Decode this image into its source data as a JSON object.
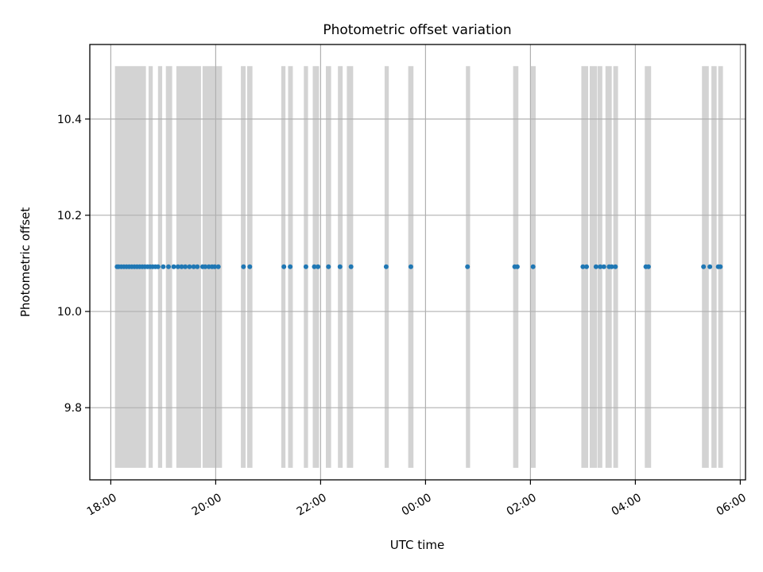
{
  "chart_data": {
    "type": "scatter",
    "title": "Photometric offset variation",
    "xlabel": "UTC time",
    "ylabel": "Photometric offset",
    "x_ticks": [
      "18:00",
      "20:00",
      "22:00",
      "00:00",
      "02:00",
      "04:00",
      "06:00"
    ],
    "y_ticks": [
      "9.8",
      "10.0",
      "10.2",
      "10.4"
    ],
    "xlim_hours": [
      17.6,
      30.1
    ],
    "ylim": [
      9.65,
      10.555
    ],
    "grid": true,
    "shaded_band_y": [
      9.675,
      10.51
    ],
    "colors": {
      "point": "#1f77b4",
      "band": "#d3d3d3",
      "grid": "#b0b0b0"
    },
    "series": [
      {
        "values_y": 10.093,
        "x_hours": [
          18.12,
          18.15,
          18.2,
          18.25,
          18.3,
          18.35,
          18.4,
          18.45,
          18.5,
          18.55,
          18.6,
          18.65,
          18.7,
          18.75,
          18.8,
          18.85,
          18.9,
          19.0,
          19.1,
          19.2,
          19.28,
          19.35,
          19.42,
          19.5,
          19.58,
          19.65,
          19.75,
          19.8,
          19.87,
          19.93,
          19.98,
          20.05,
          20.53,
          20.65,
          21.3,
          21.42,
          21.72,
          21.88,
          21.95,
          22.15,
          22.37,
          22.58,
          23.25,
          23.72,
          24.8,
          25.7,
          25.75,
          26.05,
          27.0,
          27.07,
          27.25,
          27.33,
          27.4,
          27.5,
          27.55,
          27.62,
          28.2,
          28.25,
          29.3,
          29.42,
          29.58,
          29.62
        ]
      }
    ],
    "bands_hours": [
      [
        18.08,
        18.67
      ],
      [
        18.72,
        18.8
      ],
      [
        18.9,
        18.98
      ],
      [
        19.05,
        19.17
      ],
      [
        19.25,
        19.72
      ],
      [
        19.75,
        20.12
      ],
      [
        20.48,
        20.57
      ],
      [
        20.6,
        20.7
      ],
      [
        21.25,
        21.33
      ],
      [
        21.38,
        21.47
      ],
      [
        21.68,
        21.76
      ],
      [
        21.85,
        21.97
      ],
      [
        22.1,
        22.2
      ],
      [
        22.33,
        22.42
      ],
      [
        22.5,
        22.62
      ],
      [
        23.22,
        23.3
      ],
      [
        23.67,
        23.77
      ],
      [
        24.77,
        24.85
      ],
      [
        25.67,
        25.77
      ],
      [
        26.0,
        26.1
      ],
      [
        26.97,
        27.1
      ],
      [
        27.13,
        27.27
      ],
      [
        27.28,
        27.37
      ],
      [
        27.43,
        27.55
      ],
      [
        27.58,
        27.67
      ],
      [
        28.18,
        28.3
      ],
      [
        29.27,
        29.4
      ],
      [
        29.45,
        29.55
      ],
      [
        29.58,
        29.67
      ]
    ]
  }
}
